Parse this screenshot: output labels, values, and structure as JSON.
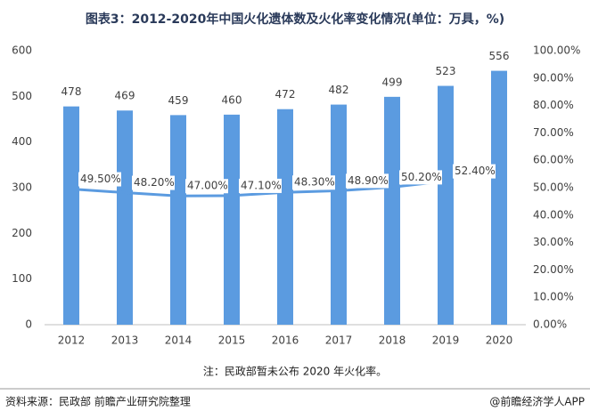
{
  "chart_data": {
    "type": "bar",
    "title": "图表3：2012-2020年中国火化遗体数及火化率变化情况(单位：万具，%)",
    "categories": [
      "2012",
      "2013",
      "2014",
      "2015",
      "2016",
      "2017",
      "2018",
      "2019",
      "2020"
    ],
    "series": [
      {
        "type": "bar",
        "color": "#5b9be0",
        "values": [
          478,
          469,
          459,
          460,
          472,
          482,
          499,
          523,
          556
        ]
      },
      {
        "type": "line",
        "axis": "y2",
        "color": "#5b9be0",
        "values": [
          49.5,
          48.2,
          47.0,
          47.1,
          48.3,
          48.9,
          50.2,
          52.4,
          null
        ],
        "value_labels": [
          "49.50%",
          "48.20%",
          "47.00%",
          "47.10%",
          "48.30%",
          "48.90%",
          "50.20%",
          "52.40%",
          null
        ]
      }
    ],
    "ylim": [
      0,
      600
    ],
    "yticks": [
      0,
      100,
      200,
      300,
      400,
      500,
      600
    ],
    "y2lim": [
      0,
      100
    ],
    "y2ticks": [
      {
        "value": 0,
        "label": "0.00%"
      },
      {
        "value": 10,
        "label": "10.00%"
      },
      {
        "value": 20,
        "label": "20.00%"
      },
      {
        "value": 30,
        "label": "30.00%"
      },
      {
        "value": 40,
        "label": "40.00%"
      },
      {
        "value": 50,
        "label": "50.00%"
      },
      {
        "value": 60,
        "label": "60.00%"
      },
      {
        "value": 70,
        "label": "70.00%"
      },
      {
        "value": 80,
        "label": "80.00%"
      },
      {
        "value": 90,
        "label": "90.00%"
      },
      {
        "value": 100,
        "label": "100.00%"
      }
    ],
    "grid": false,
    "note": "注：民政部暂未公布 2020 年火化率。",
    "source": "资料来源：民政部 前瞻产业研究院整理",
    "credit": "@前瞻经济学人APP"
  }
}
